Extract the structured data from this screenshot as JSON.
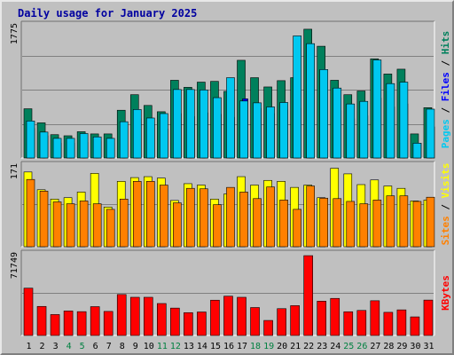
{
  "title": "Daily usage for January 2025",
  "colors": {
    "hits": "#00805C",
    "files": "#0000FF",
    "pages": "#00C8F0",
    "visits": "#FFFF00",
    "sites": "#FF8000",
    "kbytes": "#FF0000",
    "weekend": "#008040",
    "weekday": "#000000",
    "panel": "#C0C0C0",
    "grid": "#808080"
  },
  "chart_data": [
    {
      "type": "bar",
      "title": "",
      "ylabel_parts": [
        {
          "text": "Pages",
          "color": "#00C8F0"
        },
        {
          "text": " / ",
          "color": "#000000"
        },
        {
          "text": "Files",
          "color": "#0000FF"
        },
        {
          "text": " / ",
          "color": "#000000"
        },
        {
          "text": "Hits",
          "color": "#00805C"
        }
      ],
      "ymax_label": "1775",
      "ylim": [
        0,
        1775
      ],
      "categories": [
        "1",
        "2",
        "3",
        "4",
        "5",
        "6",
        "7",
        "8",
        "9",
        "10",
        "11",
        "12",
        "13",
        "14",
        "15",
        "16",
        "17",
        "18",
        "19",
        "20",
        "21",
        "22",
        "23",
        "24",
        "25",
        "26",
        "27",
        "28",
        "29",
        "30",
        "31"
      ],
      "weekend_days": [
        "4",
        "5",
        "11",
        "12",
        "18",
        "19",
        "25",
        "26"
      ],
      "series": [
        {
          "name": "Hits",
          "values": [
            665,
            475,
            315,
            300,
            355,
            325,
            325,
            645,
            855,
            710,
            625,
            1050,
            955,
            1025,
            1035,
            900,
            1320,
            1085,
            960,
            1045,
            1085,
            1740,
            1510,
            1050,
            855,
            905,
            1340,
            1135,
            1200,
            325,
            680
          ]
        },
        {
          "name": "Files",
          "values": [
            400,
            300,
            200,
            200,
            210,
            220,
            200,
            430,
            530,
            450,
            390,
            600,
            560,
            610,
            590,
            550,
            800,
            670,
            600,
            650,
            670,
            1080,
            900,
            640,
            530,
            570,
            810,
            690,
            730,
            200,
            420
          ]
        },
        {
          "name": "Pages",
          "values": [
            500,
            350,
            265,
            265,
            330,
            285,
            265,
            490,
            655,
            540,
            600,
            925,
            925,
            920,
            815,
            1085,
            770,
            745,
            690,
            750,
            1650,
            1545,
            1195,
            945,
            730,
            765,
            1325,
            1005,
            1025,
            200,
            660
          ]
        }
      ]
    },
    {
      "type": "bar",
      "title": "",
      "ylabel_parts": [
        {
          "text": "Sites",
          "color": "#FF8000"
        },
        {
          "text": " / ",
          "color": "#000000"
        },
        {
          "text": "Visits",
          "color": "#FFFF00"
        }
      ],
      "ymax_label": "171",
      "ylim": [
        0,
        171
      ],
      "categories": [
        "1",
        "2",
        "3",
        "4",
        "5",
        "6",
        "7",
        "8",
        "9",
        "10",
        "11",
        "12",
        "13",
        "14",
        "15",
        "16",
        "17",
        "18",
        "19",
        "20",
        "21",
        "22",
        "23",
        "24",
        "25",
        "26",
        "27",
        "28",
        "29",
        "30",
        "31"
      ],
      "series": [
        {
          "name": "Visits",
          "values": [
            160,
            122,
            102,
            105,
            117,
            157,
            85,
            140,
            148,
            150,
            147,
            99,
            135,
            132,
            102,
            113,
            150,
            132,
            142,
            140,
            127,
            132,
            105,
            168,
            156,
            133,
            143,
            130,
            125,
            98,
            100
          ]
        },
        {
          "name": "Sites",
          "values": [
            144,
            119,
            96,
            92,
            98,
            92,
            80,
            102,
            140,
            140,
            132,
            94,
            125,
            124,
            90,
            127,
            117,
            103,
            128,
            100,
            80,
            130,
            104,
            103,
            97,
            92,
            100,
            109,
            109,
            97,
            106
          ]
        }
      ]
    },
    {
      "type": "bar",
      "title": "",
      "ylabel_parts": [
        {
          "text": "KBytes",
          "color": "#FF0000"
        }
      ],
      "ymax_label": "71749",
      "ylim": [
        0,
        71749
      ],
      "categories": [
        "1",
        "2",
        "3",
        "4",
        "5",
        "6",
        "7",
        "8",
        "9",
        "10",
        "11",
        "12",
        "13",
        "14",
        "15",
        "16",
        "17",
        "18",
        "19",
        "20",
        "21",
        "22",
        "23",
        "24",
        "25",
        "26",
        "27",
        "28",
        "29",
        "30",
        "31"
      ],
      "series": [
        {
          "name": "KBytes",
          "values": [
            42500,
            26100,
            18800,
            22000,
            21400,
            25900,
            21600,
            36800,
            34300,
            34300,
            28700,
            24600,
            20500,
            21100,
            31700,
            35300,
            34300,
            25100,
            13500,
            24100,
            26800,
            71700,
            30800,
            33300,
            21300,
            22500,
            31200,
            20800,
            23000,
            16700,
            31800
          ]
        }
      ]
    }
  ]
}
